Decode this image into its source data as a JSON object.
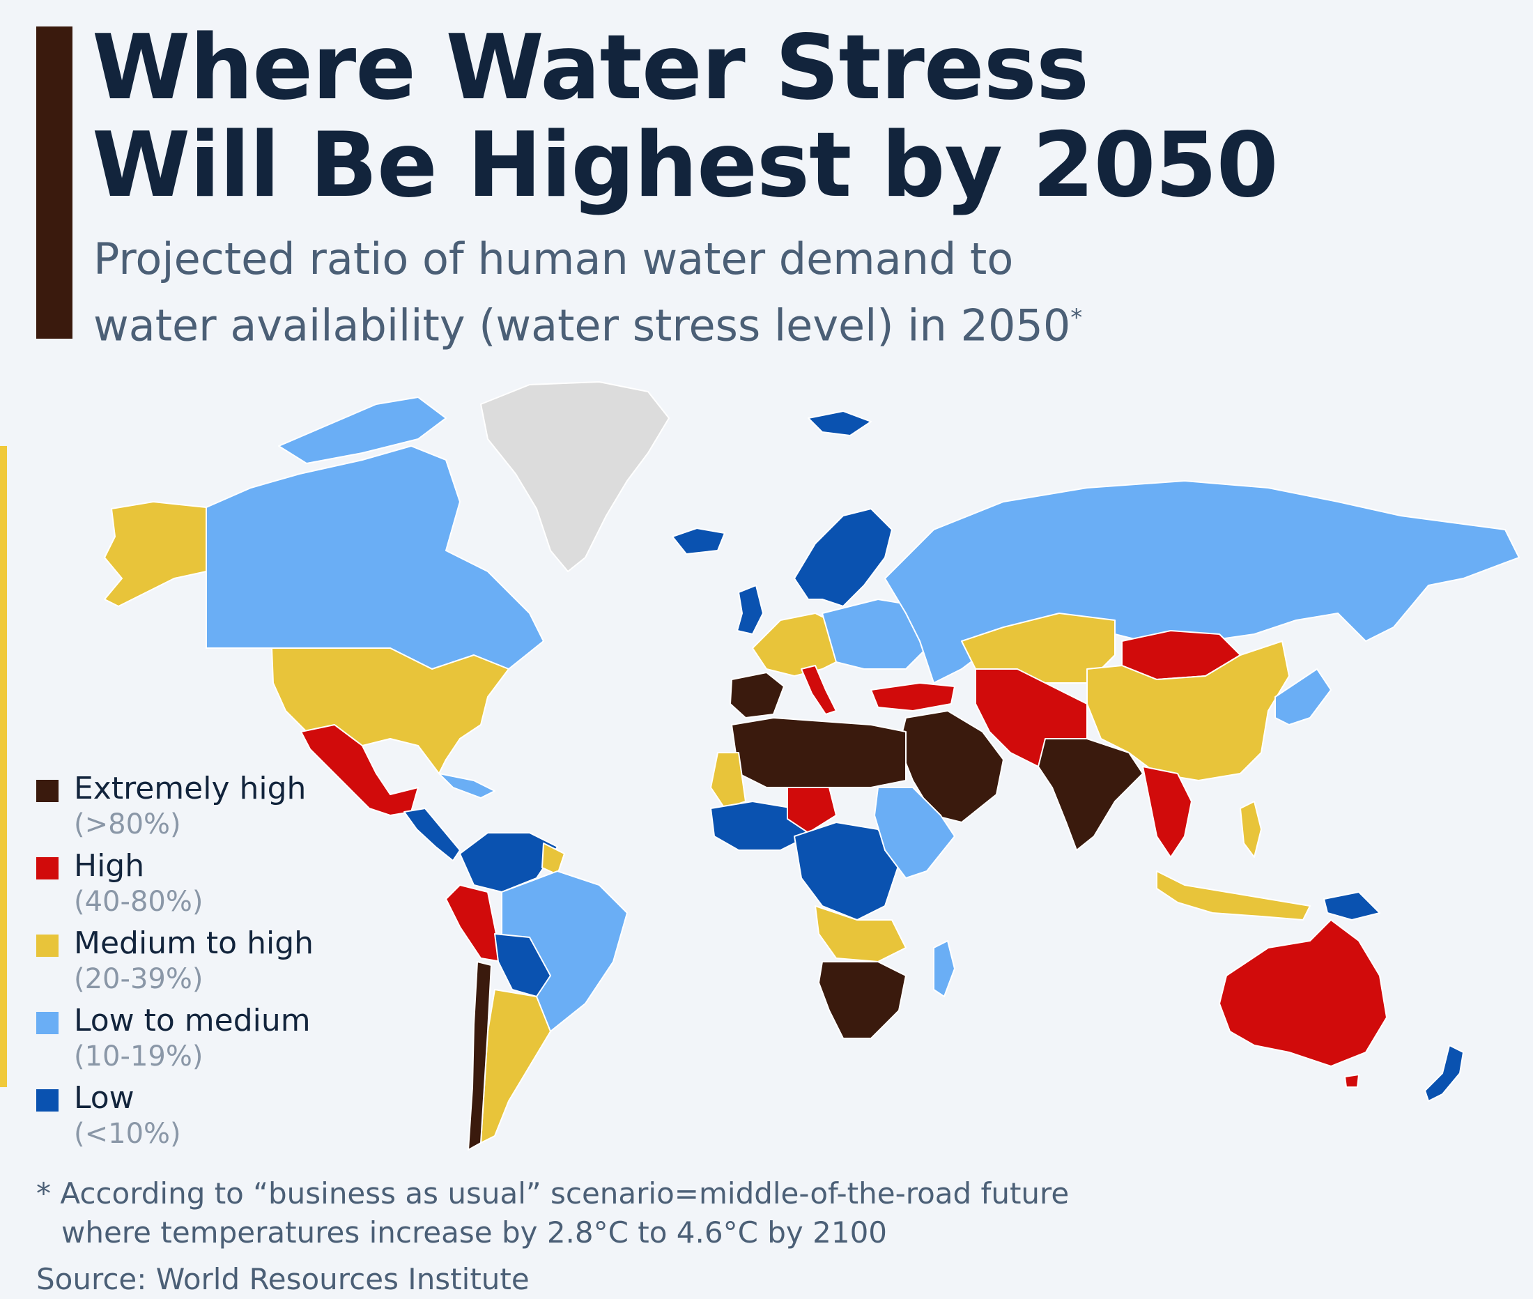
{
  "title_line1": "Where Water Stress",
  "title_line2": "Will Be Highest by 2050",
  "subtitle_line1": "Projected ratio of human water demand to",
  "subtitle_line2": "water availability (water stress level) in 2050",
  "subtitle_mark": "*",
  "colors": {
    "extremely_high": "#3a1a0d",
    "high": "#d10b0b",
    "medium_high": "#e8c43a",
    "low_medium": "#6aaef5",
    "low": "#0a52b0",
    "no_data": "#dcdcdc",
    "background": "#f2f5f9",
    "accent": "#3a1a0d"
  },
  "legend": [
    {
      "key": "extremely_high",
      "label": "Extremely high",
      "range": "(>80%)"
    },
    {
      "key": "high",
      "label": "High",
      "range": "(40-80%)"
    },
    {
      "key": "medium_high",
      "label": "Medium to high",
      "range": "(20-39%)"
    },
    {
      "key": "low_medium",
      "label": "Low to medium",
      "range": "(10-19%)"
    },
    {
      "key": "low",
      "label": "Low",
      "range": "(<10%)"
    }
  ],
  "footnote_line1": "* According to “business as usual” scenario=middle-of-the-road future",
  "footnote_line2": "where temperatures increase by 2.8°C to 4.6°C by 2100",
  "source": "Source: World Resources Institute"
}
